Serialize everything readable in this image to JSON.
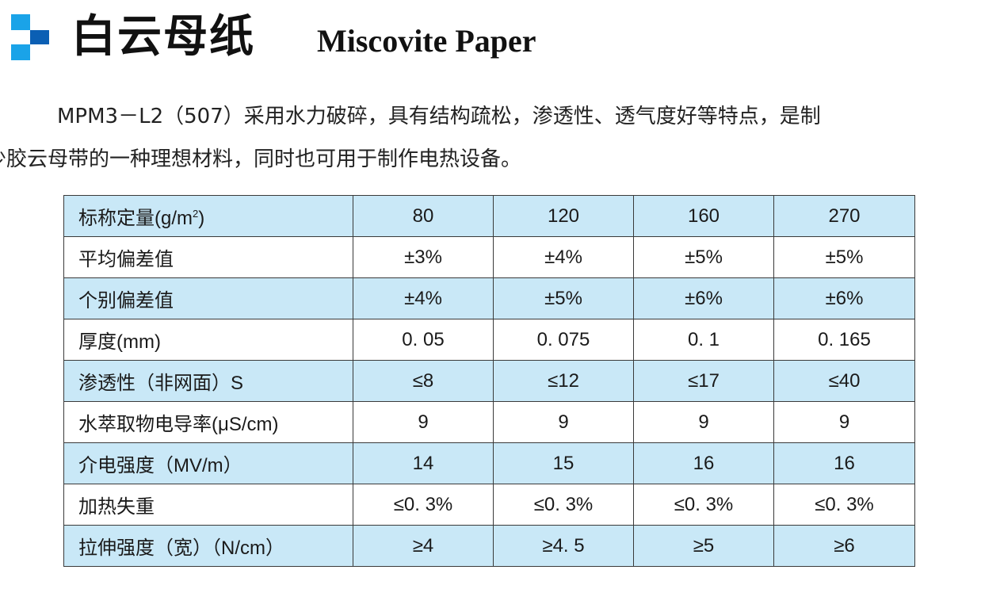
{
  "header": {
    "title_cn": "白云母纸",
    "title_en": "Miscovite Paper",
    "logo_colors": [
      "#1aa3e8",
      "#0b5fb4",
      "#1aa3e8"
    ]
  },
  "intro": {
    "line1": "MPM3－L2（507）采用水力破碎，具有结构疏松，渗透性、透气度好等特点，是制",
    "line2": "作少胶云母带的一种理想材料，同时也可用于制作电热设备。"
  },
  "table": {
    "shade_color": "#c9e8f7",
    "rows": [
      {
        "label_pre": "标称定量(g/m",
        "label_sup": "2",
        "label_post": ")",
        "values": [
          "80",
          "120",
          "160",
          "270"
        ]
      },
      {
        "label": "平均偏差值",
        "values": [
          "±3%",
          "±4%",
          "±5%",
          "±5%"
        ]
      },
      {
        "label": "个别偏差值",
        "values": [
          "±4%",
          "±5%",
          "±6%",
          "±6%"
        ]
      },
      {
        "label": "厚度(mm)",
        "values": [
          "0. 05",
          "0. 075",
          "0. 1",
          "0. 165"
        ]
      },
      {
        "label": "渗透性（非网面）S",
        "values": [
          "≤8",
          "≤12",
          "≤17",
          "≤40"
        ]
      },
      {
        "label": "水萃取物电导率(μS/cm)",
        "values": [
          "9",
          "9",
          "9",
          "9"
        ]
      },
      {
        "label": "介电强度（MV/m）",
        "values": [
          "14",
          "15",
          "16",
          "16"
        ]
      },
      {
        "label": "加热失重",
        "values": [
          "≤0. 3%",
          "≤0. 3%",
          "≤0. 3%",
          "≤0. 3%"
        ]
      },
      {
        "label": "拉伸强度（宽）（N/cm）",
        "values": [
          "≥4",
          "≥4. 5",
          "≥5",
          "≥6"
        ]
      }
    ]
  }
}
